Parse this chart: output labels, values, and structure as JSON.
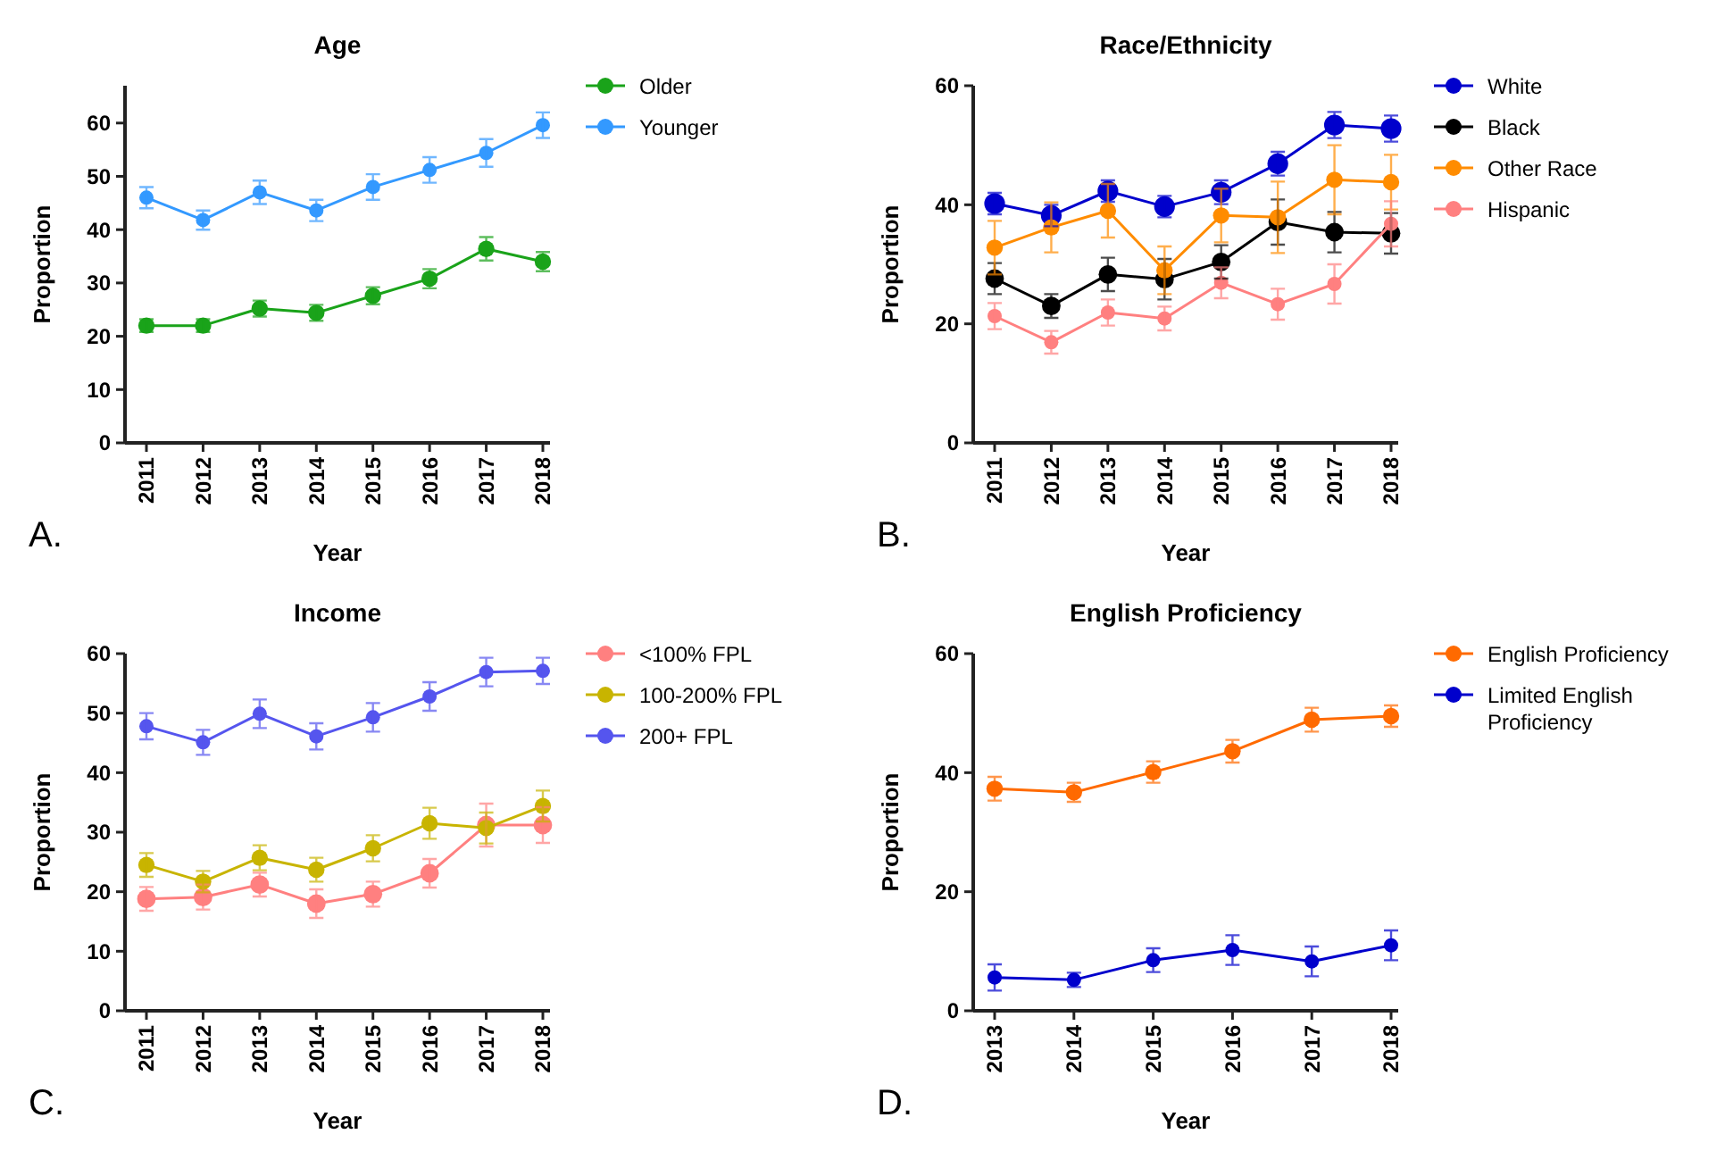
{
  "chart_data": [
    {
      "type": "line",
      "title": "Age",
      "xlabel": "Year",
      "ylabel": "Proportion",
      "categories": [
        "2011",
        "2012",
        "2013",
        "2014",
        "2015",
        "2016",
        "2017",
        "2018"
      ],
      "ylim": [
        0,
        67
      ],
      "yticks": [
        0,
        10,
        20,
        30,
        40,
        50,
        60
      ],
      "grid": false,
      "legend": "right",
      "marker": "circle",
      "annotations": [
        "A."
      ],
      "series": [
        {
          "name": "Older",
          "color": "#1aa31a",
          "values": [
            22,
            22,
            25.2,
            24.4,
            27.6,
            30.8,
            36.4,
            34
          ],
          "errors": [
            1.2,
            1.2,
            1.5,
            1.5,
            1.6,
            1.8,
            2.2,
            1.8
          ]
        },
        {
          "name": "Younger",
          "color": "#3399ff",
          "values": [
            46,
            41.8,
            47,
            43.6,
            48,
            51.2,
            54.4,
            59.6
          ],
          "errors": [
            2,
            1.8,
            2.2,
            2,
            2.4,
            2.4,
            2.6,
            2.4
          ]
        }
      ]
    },
    {
      "type": "line",
      "title": "Race/Ethnicity",
      "xlabel": "Year",
      "ylabel": "Proportion",
      "categories": [
        "2011",
        "2012",
        "2013",
        "2014",
        "2015",
        "2016",
        "2017",
        "2018"
      ],
      "ylim": [
        0,
        60
      ],
      "yticks": [
        0,
        20,
        40,
        60
      ],
      "grid": false,
      "legend": "right",
      "marker": "circle",
      "annotations": [
        "B."
      ],
      "series": [
        {
          "name": "White",
          "color": "#0000cc",
          "values": [
            40.2,
            38.2,
            42.3,
            39.7,
            42.1,
            46.9,
            53.4,
            52.8
          ],
          "errors": [
            1.8,
            1.8,
            1.8,
            1.8,
            2,
            2,
            2.2,
            2.2
          ]
        },
        {
          "name": "Black",
          "color": "#000000",
          "values": [
            27.6,
            23,
            28.3,
            27.5,
            30.4,
            37.1,
            35.4,
            35.2
          ],
          "errors": [
            2.6,
            2,
            2.8,
            3.4,
            2.8,
            3.8,
            3.4,
            3.4
          ]
        },
        {
          "name": "Other Race",
          "color": "#ff8c00",
          "values": [
            32.8,
            36.2,
            39,
            29,
            38.2,
            37.9,
            44.2,
            43.8
          ],
          "errors": [
            4.5,
            4.2,
            4.5,
            4,
            4.5,
            6,
            5.8,
            4.6
          ]
        },
        {
          "name": "Hispanic",
          "color": "#ff8080",
          "values": [
            21.3,
            16.9,
            21.9,
            20.9,
            26.9,
            23.3,
            26.7,
            36.8
          ],
          "errors": [
            2.2,
            1.9,
            2.2,
            2,
            2.6,
            2.6,
            3.3,
            3.8
          ]
        }
      ]
    },
    {
      "type": "line",
      "title": "Income",
      "xlabel": "Year",
      "ylabel": "Proportion",
      "categories": [
        "2011",
        "2012",
        "2013",
        "2014",
        "2015",
        "2016",
        "2017",
        "2018"
      ],
      "ylim": [
        0,
        60
      ],
      "yticks": [
        0,
        10,
        20,
        30,
        40,
        50,
        60
      ],
      "grid": false,
      "legend": "right",
      "marker": "circle",
      "annotations": [
        "C."
      ],
      "series": [
        {
          "name": "<100% FPL",
          "color": "#ff8080",
          "values": [
            18.8,
            19.1,
            21.2,
            18,
            19.6,
            23.1,
            31.2,
            31.2
          ],
          "errors": [
            2,
            2.1,
            2,
            2.4,
            2.1,
            2.4,
            3.6,
            3
          ]
        },
        {
          "name": "100-200% FPL",
          "color": "#c8b400",
          "values": [
            24.5,
            21.7,
            25.7,
            23.7,
            27.3,
            31.5,
            30.7,
            34.4
          ],
          "errors": [
            2,
            1.8,
            2.1,
            2,
            2.2,
            2.6,
            2.6,
            2.6
          ]
        },
        {
          "name": "200+ FPL",
          "color": "#5555ee",
          "values": [
            47.8,
            45.1,
            49.9,
            46.1,
            49.3,
            52.8,
            56.9,
            57.1
          ],
          "errors": [
            2.2,
            2.1,
            2.4,
            2.2,
            2.4,
            2.4,
            2.4,
            2.2
          ]
        }
      ]
    },
    {
      "type": "line",
      "title": "English Proficiency",
      "xlabel": "Year",
      "ylabel": "Proportion",
      "categories": [
        "2013",
        "2014",
        "2015",
        "2016",
        "2017",
        "2018"
      ],
      "ylim": [
        0,
        60
      ],
      "yticks": [
        0,
        20,
        40,
        60
      ],
      "grid": false,
      "legend": "right",
      "marker": "circle",
      "annotations": [
        "D."
      ],
      "series": [
        {
          "name": "English Proficiency",
          "color": "#ff6a00",
          "values": [
            37.3,
            36.7,
            40.1,
            43.6,
            48.9,
            49.5
          ],
          "errors": [
            2,
            1.6,
            1.8,
            1.9,
            2,
            1.8
          ]
        },
        {
          "name": "Limited English Proficiency",
          "color": "#0000cc",
          "values": [
            5.6,
            5.2,
            8.5,
            10.2,
            8.3,
            11
          ],
          "errors": [
            2.2,
            1.2,
            2,
            2.5,
            2.5,
            2.5
          ]
        }
      ]
    }
  ]
}
